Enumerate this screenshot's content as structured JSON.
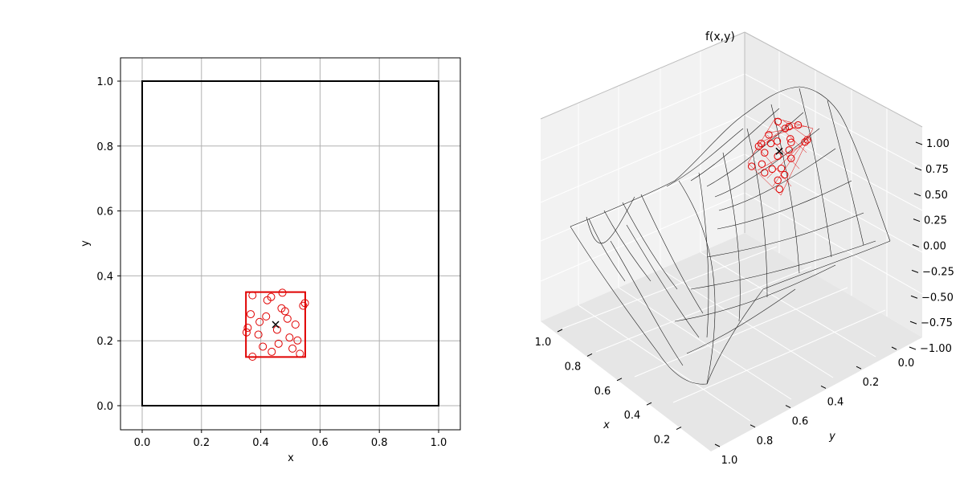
{
  "chart_data": [
    {
      "type": "scatter",
      "xlabel": "x",
      "ylabel": "y",
      "xlim": [
        -0.07,
        1.07
      ],
      "ylim": [
        -0.07,
        1.07
      ],
      "xticks": [
        "0.0",
        "0.2",
        "0.4",
        "0.6",
        "0.8",
        "1.0"
      ],
      "yticks": [
        "0.0",
        "0.2",
        "0.4",
        "0.6",
        "0.8",
        "1.0"
      ],
      "grid": true,
      "domain_box": {
        "x": [
          0.0,
          1.0
        ],
        "y": [
          0.0,
          1.0
        ],
        "color": "#000000"
      },
      "window_box": {
        "x": [
          0.35,
          0.55
        ],
        "y": [
          0.15,
          0.35
        ],
        "color": "#e00000"
      },
      "center_point": {
        "x": 0.45,
        "y": 0.25,
        "marker": "x",
        "color": "#000000"
      },
      "samples": {
        "marker": "open-circle",
        "color": "#e00000",
        "points": [
          [
            0.372,
            0.34
          ],
          [
            0.422,
            0.325
          ],
          [
            0.435,
            0.335
          ],
          [
            0.473,
            0.348
          ],
          [
            0.549,
            0.316
          ],
          [
            0.543,
            0.308
          ],
          [
            0.366,
            0.282
          ],
          [
            0.418,
            0.275
          ],
          [
            0.396,
            0.258
          ],
          [
            0.47,
            0.3
          ],
          [
            0.482,
            0.291
          ],
          [
            0.49,
            0.268
          ],
          [
            0.517,
            0.25
          ],
          [
            0.356,
            0.24
          ],
          [
            0.352,
            0.226
          ],
          [
            0.392,
            0.219
          ],
          [
            0.455,
            0.234
          ],
          [
            0.497,
            0.21
          ],
          [
            0.524,
            0.201
          ],
          [
            0.46,
            0.191
          ],
          [
            0.407,
            0.182
          ],
          [
            0.507,
            0.176
          ],
          [
            0.437,
            0.166
          ],
          [
            0.532,
            0.16
          ],
          [
            0.372,
            0.151
          ]
        ]
      }
    },
    {
      "type": "surface-3d",
      "title": "f(x,y)",
      "xlabel": "x",
      "ylabel": "y",
      "xticks": [
        "0.2",
        "0.4",
        "0.6",
        "0.8",
        "1.0"
      ],
      "yticks": [
        "0.0",
        "0.2",
        "0.4",
        "0.6",
        "0.8",
        "1.0"
      ],
      "zticks": [
        "−1.00",
        "−0.75",
        "−0.50",
        "−0.25",
        "0.00",
        "0.25",
        "0.50",
        "0.75",
        "1.00"
      ],
      "x_axis_tick_values": [
        0.2,
        0.4,
        0.6,
        0.8,
        1.0
      ],
      "y_axis_tick_values": [
        0.0,
        0.2,
        0.4,
        0.6,
        0.8,
        1.0
      ],
      "z_axis_tick_values": [
        -1.0,
        -0.75,
        -0.5,
        -0.25,
        0.0,
        0.25,
        0.5,
        0.75,
        1.0
      ],
      "surface": "wireframe of a smooth sinusoidal ridge peaking near 1 and dipping to about -1",
      "surface_color": "#000000",
      "window_color": "#e00000",
      "center_marker_color": "#000000",
      "window_center": {
        "x": 0.45,
        "y": 0.25
      }
    }
  ]
}
